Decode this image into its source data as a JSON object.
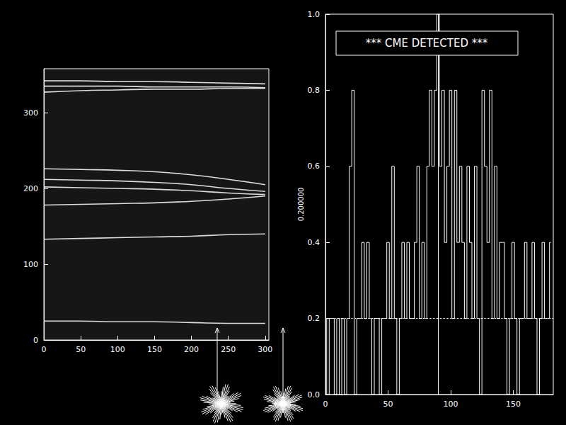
{
  "chart_data": [
    {
      "type": "line",
      "x": [
        0,
        50,
        100,
        150,
        200,
        250,
        300
      ],
      "series": [
        {
          "color": "#ffffff",
          "values": [
            342,
            342,
            341,
            341,
            340,
            339,
            338
          ]
        },
        {
          "color": "#ffffff",
          "values": [
            335,
            335,
            335,
            334,
            334,
            334,
            333
          ]
        },
        {
          "color": "#ffffff",
          "values": [
            327,
            329,
            330,
            331,
            331,
            332,
            332
          ]
        },
        {
          "color": "#ffffff",
          "values": [
            226,
            225,
            224,
            222,
            218,
            212,
            205
          ]
        },
        {
          "color": "#ffffff",
          "values": [
            212,
            211,
            210,
            208,
            205,
            200,
            196
          ]
        },
        {
          "color": "#ffffff",
          "values": [
            202,
            201,
            200,
            199,
            197,
            194,
            192
          ]
        },
        {
          "color": "#ffffff",
          "values": [
            178,
            179,
            180,
            181,
            183,
            186,
            190
          ]
        },
        {
          "color": "#ffffff",
          "values": [
            133,
            134,
            135,
            136,
            137,
            139,
            140
          ]
        },
        {
          "color": "#ffffff",
          "values": [
            25,
            25,
            24,
            24,
            23,
            22,
            22
          ]
        }
      ],
      "xlim": [
        0,
        305
      ],
      "xticks": [
        0,
        50,
        100,
        150,
        200,
        250,
        300
      ],
      "ylim": [
        0,
        358
      ],
      "yticks": [
        0,
        100,
        200,
        300
      ]
    },
    {
      "type": "line",
      "ylabel": "0.200000",
      "annotation": "*** CME DETECTED ***",
      "color": "#ffffff",
      "x": [
        0,
        2,
        4,
        6,
        8,
        10,
        12,
        14,
        16,
        18,
        20,
        22,
        24,
        26,
        28,
        30,
        32,
        34,
        36,
        38,
        40,
        42,
        44,
        46,
        48,
        50,
        52,
        54,
        56,
        58,
        60,
        62,
        64,
        66,
        68,
        70,
        72,
        74,
        76,
        78,
        80,
        82,
        84,
        86,
        88,
        90,
        92,
        94,
        96,
        98,
        100,
        102,
        104,
        106,
        108,
        110,
        112,
        114,
        116,
        118,
        120,
        122,
        124,
        126,
        128,
        130,
        132,
        134,
        136,
        138,
        140,
        142,
        144,
        146,
        148,
        150,
        152,
        154,
        156,
        158,
        160,
        162,
        164,
        166,
        168,
        170,
        172,
        174,
        176,
        178,
        180
      ],
      "values": [
        0.2,
        0,
        0.2,
        0.2,
        0,
        0.2,
        0,
        0.2,
        0,
        0.2,
        0.6,
        0.8,
        0,
        0.2,
        0.2,
        0.4,
        0.2,
        0.4,
        0.2,
        0,
        0.2,
        0.2,
        0,
        0.2,
        0.2,
        0.4,
        0.2,
        0.6,
        0.2,
        0,
        0.2,
        0.4,
        0.2,
        0.4,
        0.2,
        0.2,
        0.4,
        0.6,
        0.2,
        0.4,
        0.2,
        0.6,
        0.8,
        0.6,
        0.8,
        1.0,
        0.6,
        0.8,
        0.4,
        0.6,
        0.8,
        0.2,
        0.8,
        0.4,
        0.6,
        0.4,
        0.2,
        0.6,
        0.4,
        0.2,
        0.6,
        0.2,
        0,
        0.8,
        0.6,
        0.4,
        0.8,
        0.2,
        0.6,
        0.2,
        0.4,
        0.4,
        0.2,
        0,
        0.2,
        0.4,
        0.2,
        0,
        0.2,
        0.2,
        0.4,
        0.2,
        0.2,
        0.4,
        0.2,
        0,
        0.2,
        0.4,
        0.2,
        0.2,
        0.4
      ],
      "hlines": [
        0.2
      ],
      "vlines": [
        90
      ],
      "xlim": [
        0,
        182
      ],
      "xticks": [
        0,
        50,
        100,
        150
      ],
      "ylim": [
        0,
        1.0
      ],
      "yticks": [
        {
          "value": 0,
          "label": "0.0"
        },
        {
          "value": 0.2,
          "label": "0.2"
        },
        {
          "value": 0.4,
          "label": "0.4"
        },
        {
          "value": 0.6,
          "label": "0.6"
        },
        {
          "value": 0.8,
          "label": "0.8"
        },
        {
          "value": 1.0,
          "label": "1.0"
        }
      ]
    }
  ]
}
